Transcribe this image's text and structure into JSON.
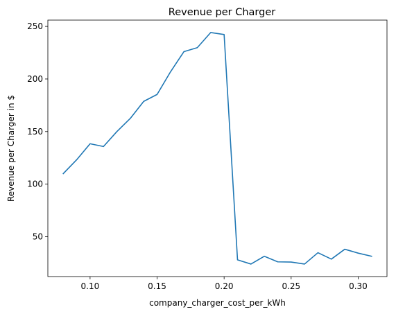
{
  "chart_data": {
    "type": "line",
    "title": "Revenue per Charger",
    "xlabel": "company_charger_cost_per_kWh",
    "ylabel": "Revenue per Charger in $",
    "xlim": [
      0.0685,
      0.3215
    ],
    "ylim": [
      12.1,
      256.0
    ],
    "x_ticks": [
      0.1,
      0.15,
      0.2,
      0.25,
      0.3
    ],
    "x_tick_labels": [
      "0.10",
      "0.15",
      "0.20",
      "0.25",
      "0.30"
    ],
    "y_ticks": [
      50,
      100,
      150,
      200,
      250
    ],
    "y_tick_labels": [
      "50",
      "100",
      "150",
      "200",
      "250"
    ],
    "grid": false,
    "series": [
      {
        "color": "#1f77b4",
        "x": [
          0.08,
          0.09,
          0.1,
          0.11,
          0.12,
          0.13,
          0.14,
          0.15,
          0.16,
          0.17,
          0.18,
          0.19,
          0.2,
          0.21,
          0.22,
          0.23,
          0.24,
          0.25,
          0.26,
          0.27,
          0.28,
          0.29,
          0.3,
          0.31
        ],
        "y": [
          110.0,
          123.2,
          138.4,
          135.8,
          150.0,
          162.5,
          178.7,
          185.3,
          206.8,
          226.0,
          229.8,
          244.2,
          242.3,
          28.0,
          24.0,
          31.4,
          26.1,
          25.9,
          24.0,
          34.8,
          28.7,
          38.1,
          34.4,
          31.4
        ]
      }
    ]
  }
}
